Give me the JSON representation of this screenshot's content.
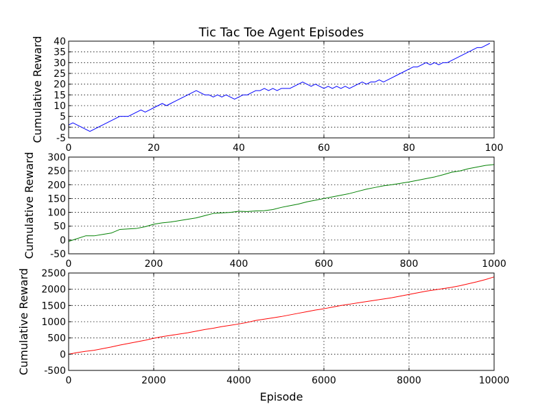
{
  "chart_data": [
    {
      "type": "line",
      "title": "Tic Tac Toe Agent Episodes",
      "xlabel": "",
      "ylabel": "Cumulative Reward",
      "xlim": [
        0,
        100
      ],
      "ylim": [
        -5,
        40
      ],
      "xticks": [
        0,
        20,
        40,
        60,
        80,
        100
      ],
      "yticks": [
        -5,
        0,
        5,
        10,
        15,
        20,
        25,
        30,
        35,
        40
      ],
      "grid": true,
      "series": [
        {
          "color": "#0000ff",
          "x": [
            0,
            1,
            2,
            3,
            4,
            5,
            6,
            7,
            8,
            9,
            10,
            11,
            12,
            13,
            14,
            15,
            16,
            17,
            18,
            19,
            20,
            21,
            22,
            23,
            24,
            25,
            26,
            27,
            28,
            29,
            30,
            31,
            32,
            33,
            34,
            35,
            36,
            37,
            38,
            39,
            40,
            41,
            42,
            43,
            44,
            45,
            46,
            47,
            48,
            49,
            50,
            51,
            52,
            53,
            54,
            55,
            56,
            57,
            58,
            59,
            60,
            61,
            62,
            63,
            64,
            65,
            66,
            67,
            68,
            69,
            70,
            71,
            72,
            73,
            74,
            75,
            76,
            77,
            78,
            79,
            80,
            81,
            82,
            83,
            84,
            85,
            86,
            87,
            88,
            89,
            90,
            91,
            92,
            93,
            94,
            95,
            96,
            97,
            98,
            99
          ],
          "y": [
            1,
            2,
            1,
            0,
            -1,
            -2,
            -1,
            0,
            1,
            2,
            3,
            4,
            5,
            5,
            5,
            6,
            7,
            8,
            7,
            8,
            9,
            10,
            11,
            10,
            11,
            12,
            13,
            14,
            15,
            16,
            17,
            16,
            15,
            15,
            14,
            15,
            14,
            15,
            14,
            13,
            14,
            15,
            15,
            16,
            17,
            17,
            18,
            17,
            18,
            17,
            18,
            18,
            18,
            19,
            20,
            21,
            20,
            19,
            20,
            19,
            18,
            19,
            18,
            19,
            18,
            19,
            18,
            19,
            20,
            21,
            20,
            21,
            21,
            22,
            21,
            22,
            23,
            24,
            25,
            26,
            27,
            28,
            28,
            29,
            30,
            29,
            30,
            29,
            30,
            30,
            31,
            32,
            33,
            34,
            35,
            36,
            37,
            37,
            38,
            39
          ]
        }
      ]
    },
    {
      "type": "line",
      "title": "",
      "xlabel": "",
      "ylabel": "Cumulative Reward",
      "xlim": [
        0,
        1000
      ],
      "ylim": [
        -50,
        300
      ],
      "xticks": [
        0,
        200,
        400,
        600,
        800,
        1000
      ],
      "yticks": [
        -50,
        0,
        50,
        100,
        150,
        200,
        250,
        300
      ],
      "grid": true,
      "series": [
        {
          "color": "#008000",
          "x": [
            0,
            20,
            40,
            60,
            80,
            100,
            120,
            140,
            160,
            180,
            200,
            220,
            240,
            260,
            280,
            300,
            320,
            340,
            360,
            380,
            400,
            420,
            440,
            460,
            480,
            500,
            520,
            540,
            560,
            580,
            600,
            620,
            640,
            660,
            680,
            700,
            720,
            740,
            760,
            780,
            800,
            820,
            840,
            860,
            880,
            900,
            920,
            940,
            960,
            980,
            1000
          ],
          "y": [
            -5,
            5,
            15,
            15,
            20,
            25,
            38,
            40,
            42,
            48,
            57,
            62,
            65,
            70,
            75,
            80,
            88,
            96,
            98,
            100,
            104,
            103,
            105,
            106,
            110,
            118,
            124,
            130,
            138,
            144,
            150,
            156,
            162,
            168,
            176,
            184,
            190,
            196,
            200,
            205,
            210,
            216,
            222,
            228,
            236,
            245,
            250,
            258,
            264,
            270,
            273
          ]
        }
      ]
    },
    {
      "type": "line",
      "title": "",
      "xlabel": "Episode",
      "ylabel": "Cumulative Reward",
      "xlim": [
        0,
        10000
      ],
      "ylim": [
        -500,
        2500
      ],
      "xticks": [
        0,
        2000,
        4000,
        6000,
        8000,
        10000
      ],
      "yticks": [
        -500,
        0,
        500,
        1000,
        1500,
        2000,
        2500
      ],
      "grid": true,
      "series": [
        {
          "color": "#ff0000",
          "x": [
            0,
            200,
            400,
            600,
            800,
            1000,
            1200,
            1400,
            1600,
            1800,
            2000,
            2200,
            2400,
            2600,
            2800,
            3000,
            3200,
            3400,
            3600,
            3800,
            4000,
            4200,
            4400,
            4600,
            4800,
            5000,
            5200,
            5400,
            5600,
            5800,
            6000,
            6200,
            6400,
            6600,
            6800,
            7000,
            7200,
            7400,
            7600,
            7800,
            8000,
            8200,
            8400,
            8600,
            8800,
            9000,
            9200,
            9400,
            9600,
            9800,
            10000
          ],
          "y": [
            0,
            50,
            90,
            120,
            170,
            220,
            280,
            330,
            380,
            430,
            490,
            540,
            580,
            620,
            660,
            710,
            760,
            800,
            850,
            890,
            930,
            980,
            1040,
            1080,
            1120,
            1160,
            1210,
            1260,
            1310,
            1360,
            1400,
            1450,
            1500,
            1540,
            1580,
            1620,
            1660,
            1700,
            1740,
            1790,
            1840,
            1890,
            1940,
            1980,
            2020,
            2060,
            2110,
            2170,
            2230,
            2300,
            2380
          ]
        }
      ]
    }
  ]
}
